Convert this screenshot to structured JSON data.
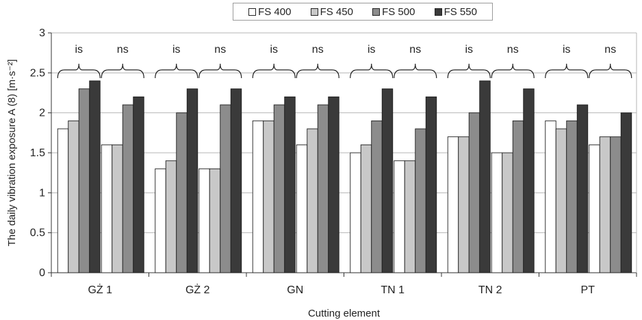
{
  "chart_data": {
    "type": "bar",
    "title": "",
    "xlabel": "Cutting element",
    "ylabel": "The daily vibration exposure A (8) [m·s⁻²]",
    "ylim": [
      0,
      3
    ],
    "yticks": [
      "0",
      "0.5",
      "1",
      "1.5",
      "2",
      "2.5",
      "3"
    ],
    "grid": true,
    "legend_position": "top",
    "categories": [
      "GŻ 1",
      "GŻ 2",
      "GN",
      "TN 1",
      "TN 2",
      "PT"
    ],
    "series": [
      {
        "name": "FS 400",
        "color": "#ffffff"
      },
      {
        "name": "FS 450",
        "color": "#c8c8c8"
      },
      {
        "name": "FS 500",
        "color": "#8c8c8c"
      },
      {
        "name": "FS 550",
        "color": "#3a3a3a"
      }
    ],
    "groups": [
      {
        "label": "is",
        "values": [
          [
            1.8,
            1.9,
            2.3,
            2.4
          ],
          [
            1.3,
            1.4,
            2.0,
            2.3
          ],
          [
            1.9,
            1.9,
            2.1,
            2.2
          ],
          [
            1.5,
            1.6,
            1.9,
            2.3
          ],
          [
            1.7,
            1.7,
            2.0,
            2.4
          ],
          [
            1.9,
            1.8,
            1.9,
            2.1
          ]
        ]
      },
      {
        "label": "ns",
        "values": [
          [
            1.6,
            1.6,
            2.1,
            2.2
          ],
          [
            1.3,
            1.3,
            2.1,
            2.3
          ],
          [
            1.6,
            1.8,
            2.1,
            2.2
          ],
          [
            1.4,
            1.4,
            1.8,
            2.2
          ],
          [
            1.5,
            1.5,
            1.9,
            2.3
          ],
          [
            1.6,
            1.7,
            1.7,
            2.0
          ]
        ]
      }
    ]
  }
}
